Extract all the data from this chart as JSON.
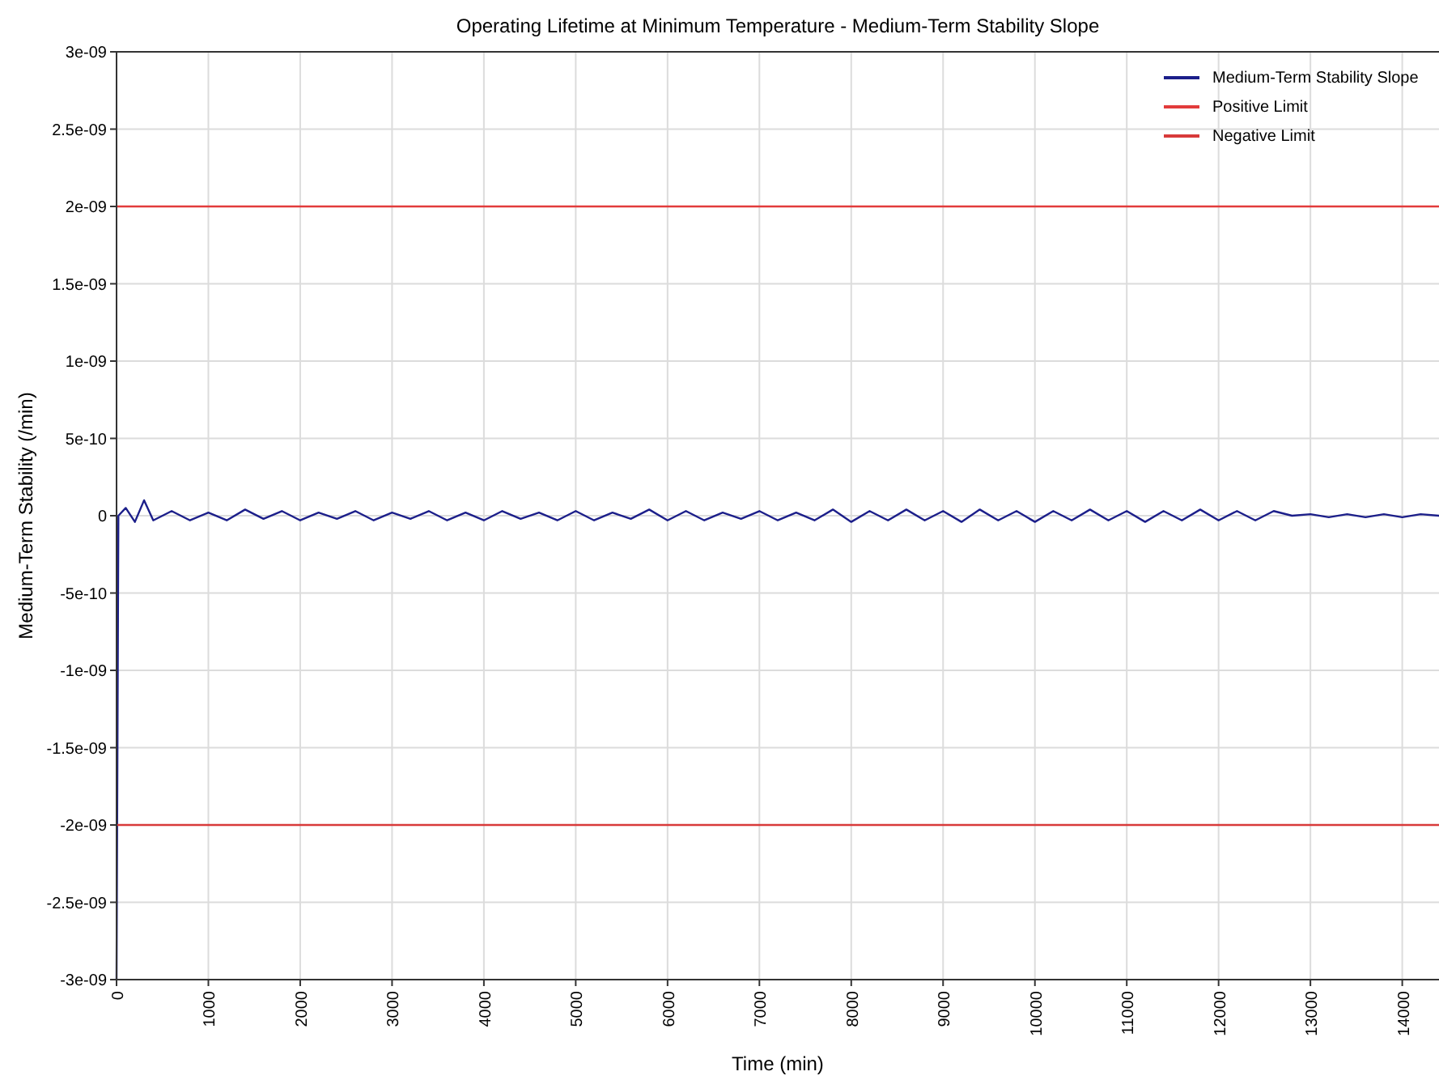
{
  "chart_data": {
    "type": "line",
    "title": "Operating Lifetime at Minimum Temperature - Medium-Term Stability Slope",
    "xlabel": "Time (min)",
    "ylabel": "Medium-Term Stability (/min)",
    "xlim": [
      0,
      14400
    ],
    "ylim": [
      -3e-09,
      3e-09
    ],
    "xticks": [
      0,
      1000,
      2000,
      3000,
      4000,
      5000,
      6000,
      7000,
      8000,
      9000,
      10000,
      11000,
      12000,
      13000,
      14000
    ],
    "yticks": [
      {
        "value": -3e-09,
        "label": "-3e-09"
      },
      {
        "value": -2.5e-09,
        "label": "-2.5e-09"
      },
      {
        "value": -2e-09,
        "label": "-2e-09"
      },
      {
        "value": -1.5e-09,
        "label": "-1.5e-09"
      },
      {
        "value": -1e-09,
        "label": "-1e-09"
      },
      {
        "value": -5e-10,
        "label": "-5e-10"
      },
      {
        "value": 0,
        "label": "0"
      },
      {
        "value": 5e-10,
        "label": "5e-10"
      },
      {
        "value": 1e-09,
        "label": "1e-09"
      },
      {
        "value": 1.5e-09,
        "label": "1.5e-09"
      },
      {
        "value": 2e-09,
        "label": "2e-09"
      },
      {
        "value": 2.5e-09,
        "label": "2.5e-09"
      },
      {
        "value": 3e-09,
        "label": "3e-09"
      }
    ],
    "grid": true,
    "legend": "top right",
    "line_style": "solid",
    "series": [
      {
        "name": "Medium-Term Stability Slope",
        "color": "#1c1f8a",
        "x": [
          0,
          20,
          100,
          200,
          300,
          400,
          600,
          800,
          1000,
          1200,
          1400,
          1600,
          1800,
          2000,
          2200,
          2400,
          2600,
          2800,
          3000,
          3200,
          3400,
          3600,
          3800,
          4000,
          4200,
          4400,
          4600,
          4800,
          5000,
          5200,
          5400,
          5600,
          5800,
          6000,
          6200,
          6400,
          6600,
          6800,
          7000,
          7200,
          7400,
          7600,
          7800,
          8000,
          8200,
          8400,
          8600,
          8800,
          9000,
          9200,
          9400,
          9600,
          9800,
          10000,
          10200,
          10400,
          10600,
          10800,
          11000,
          11200,
          11400,
          11600,
          11800,
          12000,
          12200,
          12400,
          12600,
          12800,
          13000,
          13200,
          13400,
          13600,
          13800,
          14000,
          14200,
          14400
        ],
        "values": [
          -3e-09,
          0,
          5e-11,
          -4e-11,
          1e-10,
          -3e-11,
          3e-11,
          -3e-11,
          2e-11,
          -3e-11,
          4e-11,
          -2e-11,
          3e-11,
          -3e-11,
          2e-11,
          -2e-11,
          3e-11,
          -3e-11,
          2e-11,
          -2e-11,
          3e-11,
          -3e-11,
          2e-11,
          -3e-11,
          3e-11,
          -2e-11,
          2e-11,
          -3e-11,
          3e-11,
          -3e-11,
          2e-11,
          -2e-11,
          4e-11,
          -3e-11,
          3e-11,
          -3e-11,
          2e-11,
          -2e-11,
          3e-11,
          -3e-11,
          2e-11,
          -3e-11,
          4e-11,
          -4e-11,
          3e-11,
          -3e-11,
          4e-11,
          -3e-11,
          3e-11,
          -4e-11,
          4e-11,
          -3e-11,
          3e-11,
          -4e-11,
          3e-11,
          -3e-11,
          4e-11,
          -3e-11,
          3e-11,
          -4e-11,
          3e-11,
          -3e-11,
          4e-11,
          -3e-11,
          3e-11,
          -3e-11,
          3e-11,
          0,
          1e-11,
          -1e-11,
          1e-11,
          -1e-11,
          1e-11,
          -1e-11,
          1e-11,
          0
        ]
      },
      {
        "name": "Positive Limit",
        "color": "#e23b3b",
        "x": [
          0,
          14400
        ],
        "values": [
          2e-09,
          2e-09
        ]
      },
      {
        "name": "Negative Limit",
        "color": "#d83a3a",
        "x": [
          0,
          14400
        ],
        "values": [
          -2e-09,
          -2e-09
        ]
      }
    ]
  }
}
